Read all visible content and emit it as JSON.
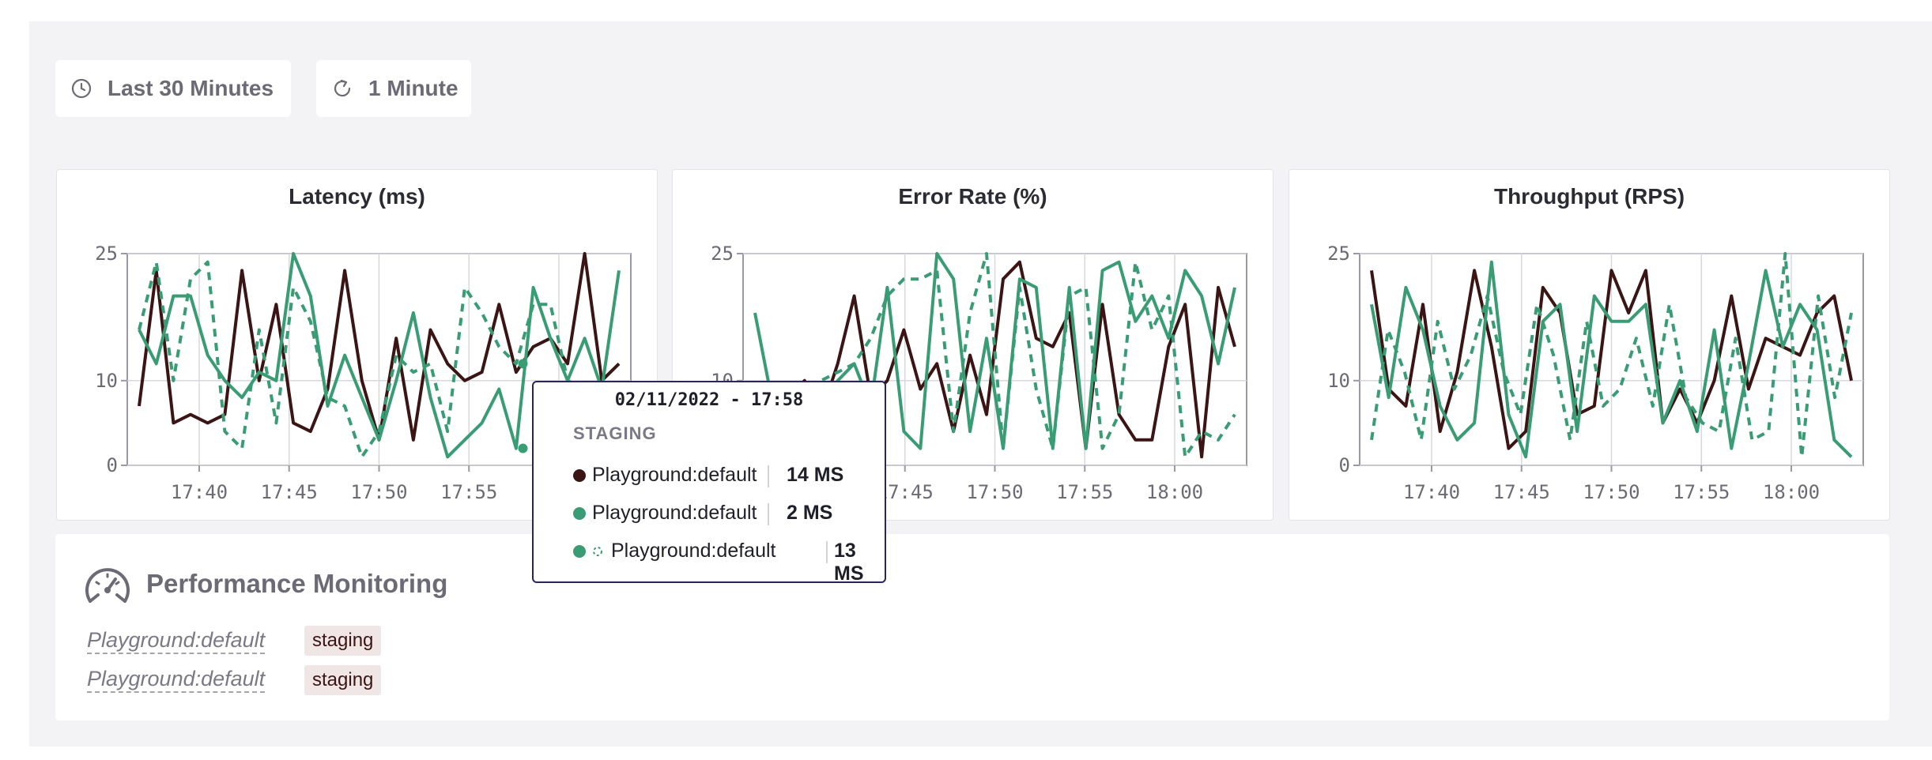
{
  "toolbar": {
    "time_range": {
      "label": "Last 30 Minutes",
      "icon": "clock-icon"
    },
    "refresh": {
      "label": "1 Minute",
      "icon": "refresh-icon"
    }
  },
  "colors": {
    "dark_series": "#3b1414",
    "green_series": "#3a9c74",
    "tag_bg": "#f1e6e6",
    "tooltip_border": "#2b2656"
  },
  "charts": [
    {
      "title": "Latency (ms)"
    },
    {
      "title": "Error Rate (%)"
    },
    {
      "title": "Throughput (RPS)"
    }
  ],
  "chart_data": [
    {
      "type": "line",
      "title": "Latency (ms)",
      "x_ticks": [
        "17:40",
        "17:45",
        "17:50",
        "17:55",
        "18:00"
      ],
      "y_ticks": [
        0,
        10,
        25
      ],
      "ylim": [
        0,
        25
      ],
      "grid": true,
      "series": [
        {
          "style": "solid",
          "color": "#3b1414",
          "values": [
            7,
            23,
            5,
            6,
            5,
            6,
            23,
            10,
            19,
            5,
            4,
            9,
            23,
            10,
            3,
            15,
            3,
            16,
            12,
            10,
            11,
            19,
            11,
            14,
            15,
            12,
            25,
            10,
            12
          ]
        },
        {
          "style": "solid",
          "color": "#3a9c74",
          "values": [
            16,
            12,
            20,
            20,
            13,
            10,
            8,
            11,
            10,
            25,
            20,
            7,
            13,
            8,
            3,
            10,
            18,
            8,
            1,
            3,
            5,
            9,
            2,
            21,
            15,
            10,
            15,
            9,
            23
          ]
        },
        {
          "style": "dashed",
          "color": "#3a9c74",
          "values": [
            16,
            24,
            10,
            22,
            24,
            4,
            2,
            16,
            5,
            21,
            17,
            8,
            7,
            1,
            4,
            13,
            11,
            12,
            4,
            21,
            18,
            14,
            12,
            19,
            19,
            10,
            9,
            9,
            8
          ]
        }
      ]
    },
    {
      "type": "line",
      "title": "Error Rate (%)",
      "x_ticks": [
        "17:45",
        "17:50",
        "17:55",
        "18:00"
      ],
      "y_ticks": [
        0,
        10,
        25
      ],
      "ylim": [
        0,
        25
      ],
      "grid": true,
      "series": [
        {
          "style": "solid",
          "color": "#3b1414",
          "values": [
            9,
            7,
            8,
            10,
            6,
            12,
            20,
            8,
            10,
            16,
            9,
            12,
            4,
            13,
            6,
            22,
            24,
            15,
            14,
            18,
            2,
            19,
            6,
            3,
            3,
            14,
            19,
            1,
            21,
            14
          ]
        },
        {
          "style": "solid",
          "color": "#3a9c74",
          "values": [
            18,
            8,
            9,
            7,
            7,
            10,
            12,
            7,
            21,
            4,
            2,
            25,
            22,
            4,
            15,
            2,
            22,
            21,
            2,
            21,
            2,
            23,
            24,
            17,
            20,
            15,
            23,
            20,
            12,
            21
          ]
        },
        {
          "style": "dashed",
          "color": "#3a9c74",
          "values": [
            9,
            8,
            7,
            7,
            10,
            11,
            12,
            15,
            20,
            22,
            22,
            23,
            4,
            18,
            25,
            2,
            21,
            9,
            2,
            20,
            21,
            2,
            6,
            24,
            16,
            20,
            1,
            4,
            3,
            6
          ]
        }
      ]
    },
    {
      "type": "line",
      "title": "Throughput (RPS)",
      "x_ticks": [
        "17:40",
        "17:45",
        "17:50",
        "17:55",
        "18:00"
      ],
      "y_ticks": [
        0,
        10,
        25
      ],
      "ylim": [
        0,
        25
      ],
      "grid": true,
      "series": [
        {
          "style": "solid",
          "color": "#3b1414",
          "values": [
            23,
            9,
            7,
            19,
            4,
            11,
            23,
            14,
            2,
            4,
            21,
            18,
            6,
            7,
            23,
            18,
            23,
            5,
            9,
            5,
            10,
            20,
            9,
            15,
            14,
            13,
            18,
            20,
            10
          ]
        },
        {
          "style": "solid",
          "color": "#3a9c74",
          "values": [
            19,
            8,
            21,
            16,
            7,
            3,
            5,
            24,
            6,
            1,
            17,
            19,
            4,
            20,
            17,
            17,
            19,
            5,
            10,
            4,
            16,
            2,
            12,
            23,
            14,
            19,
            16,
            3,
            1
          ]
        },
        {
          "style": "dashed",
          "color": "#3a9c74",
          "values": [
            3,
            16,
            11,
            3,
            17,
            9,
            13,
            20,
            11,
            6,
            19,
            13,
            3,
            17,
            7,
            9,
            15,
            7,
            19,
            8,
            5,
            4,
            15,
            3,
            4,
            25,
            1,
            20,
            8,
            18
          ]
        }
      ]
    }
  ],
  "tooltip": {
    "date": "02/11/2022 - 17:58",
    "env": "STAGING",
    "rows": [
      {
        "label": "Playground:default",
        "value": "14 MS",
        "color": "#3b1414",
        "dashed": false
      },
      {
        "label": "Playground:default",
        "value": "2 MS",
        "color": "#3a9c74",
        "dashed": false
      },
      {
        "label": "Playground:default",
        "value": "13 MS",
        "color": "#3a9c74",
        "dashed": true
      }
    ]
  },
  "monitoring": {
    "title": "Performance Monitoring",
    "icon": "gauge-icon",
    "items": [
      {
        "name": "Playground:default",
        "tag": "staging"
      },
      {
        "name": "Playground:default",
        "tag": "staging"
      }
    ]
  }
}
